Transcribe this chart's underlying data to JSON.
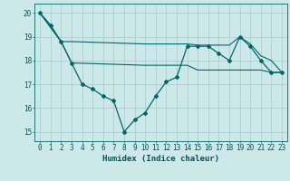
{
  "title": "",
  "xlabel": "Humidex (Indice chaleur)",
  "ylabel": "",
  "background_color": "#cce8e8",
  "grid_color": "#aacfcf",
  "line_color": "#006868",
  "x_main": [
    0,
    1,
    2,
    3,
    4,
    5,
    6,
    7,
    8,
    9,
    10,
    11,
    12,
    13,
    14,
    15,
    16,
    17,
    18,
    19,
    20,
    21,
    22,
    23
  ],
  "y_main": [
    20.0,
    19.5,
    18.8,
    17.9,
    17.0,
    16.8,
    16.5,
    16.3,
    15.0,
    15.5,
    15.8,
    16.5,
    17.1,
    17.3,
    18.6,
    18.6,
    18.6,
    18.3,
    18.0,
    19.0,
    18.6,
    18.0,
    17.5,
    17.5
  ],
  "x_upper": [
    0,
    2,
    3,
    10,
    14,
    15,
    16,
    17,
    18,
    19,
    20,
    21,
    22,
    23
  ],
  "y_upper": [
    20.0,
    18.8,
    18.8,
    18.7,
    18.7,
    18.65,
    18.65,
    18.65,
    18.65,
    19.0,
    18.7,
    18.2,
    18.0,
    17.5
  ],
  "x_lower": [
    0,
    2,
    3,
    10,
    14,
    15,
    16,
    17,
    18,
    19,
    20,
    21,
    22,
    23
  ],
  "y_lower": [
    20.0,
    18.8,
    17.9,
    17.8,
    17.8,
    17.6,
    17.6,
    17.6,
    17.6,
    17.6,
    17.6,
    17.6,
    17.5,
    17.5
  ],
  "ylim": [
    14.6,
    20.4
  ],
  "xlim": [
    -0.5,
    23.5
  ],
  "yticks": [
    15,
    16,
    17,
    18,
    19,
    20
  ],
  "xticks": [
    0,
    1,
    2,
    3,
    4,
    5,
    6,
    7,
    8,
    9,
    10,
    11,
    12,
    13,
    14,
    15,
    16,
    17,
    18,
    19,
    20,
    21,
    22,
    23
  ],
  "font_color": "#005555",
  "font_size": 5.5,
  "xlabel_fontsize": 6.5
}
